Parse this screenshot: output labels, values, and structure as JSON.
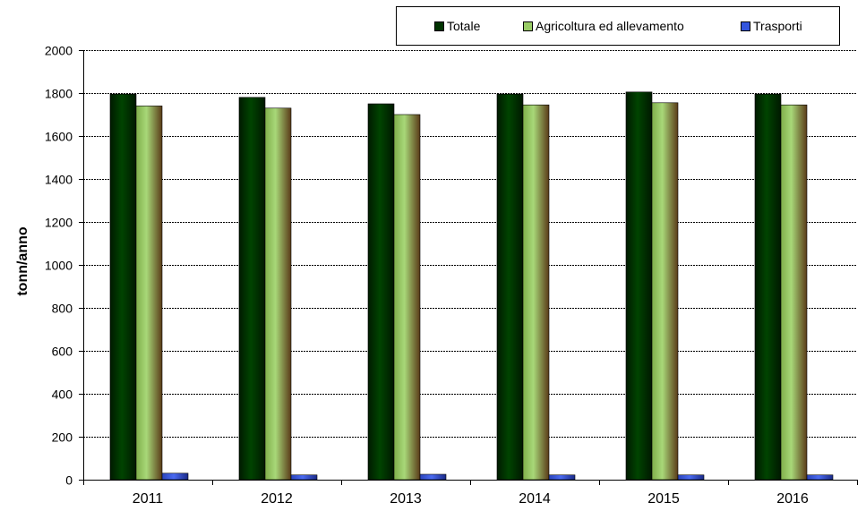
{
  "chart_data": {
    "type": "bar",
    "ylabel": "tonn/anno",
    "ylim": [
      0,
      2000
    ],
    "yticks": [
      "0",
      "200",
      "400",
      "600",
      "800",
      "1000",
      "1200",
      "1400",
      "1600",
      "1800",
      "2000"
    ],
    "grid": true,
    "legend_position": "top-right",
    "categories": [
      "2011",
      "2012",
      "2013",
      "2014",
      "2015",
      "2016"
    ],
    "series": [
      {
        "name": "Totale",
        "color": "#003300",
        "values": [
          1795,
          1780,
          1750,
          1795,
          1805,
          1795
        ]
      },
      {
        "name": "Agricoltura ed allevamento",
        "color": "#99cc66",
        "values": [
          1740,
          1730,
          1700,
          1745,
          1755,
          1745
        ]
      },
      {
        "name": "Trasporti",
        "color": "#3355dd",
        "values": [
          30,
          22,
          25,
          22,
          22,
          22
        ]
      }
    ]
  }
}
